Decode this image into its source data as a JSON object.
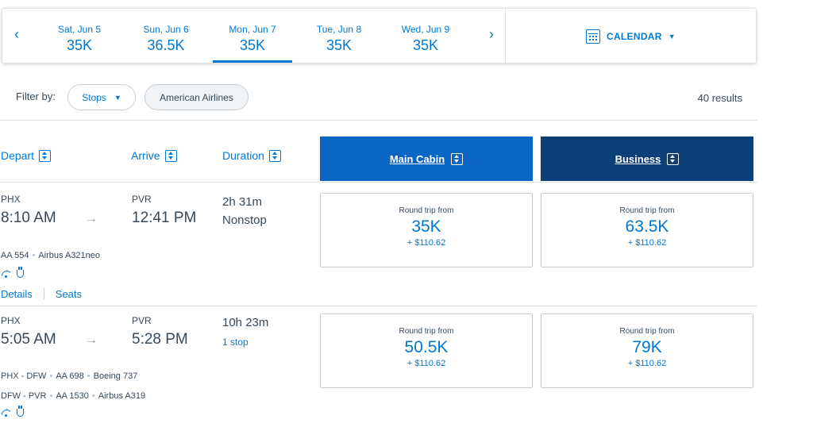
{
  "date_bar": {
    "prev_arrow": "‹",
    "next_arrow": "›",
    "days": [
      {
        "date": "Sat, Jun 5",
        "price": "35K"
      },
      {
        "date": "Sun, Jun 6",
        "price": "36.5K"
      },
      {
        "date": "Mon, Jun 7",
        "price": "35K"
      },
      {
        "date": "Tue, Jun 8",
        "price": "35K"
      },
      {
        "date": "Wed, Jun 9",
        "price": "35K"
      }
    ],
    "selected_index": 2,
    "calendar_label": "CALENDAR",
    "calendar_caret": "▼"
  },
  "filters": {
    "label": "Filter by:",
    "stops_label": "Stops",
    "stops_caret": "▼",
    "airline_label": "American Airlines",
    "results": "40 results"
  },
  "columns": {
    "depart": "Depart",
    "arrive": "Arrive",
    "duration": "Duration",
    "main_cabin": "Main Cabin",
    "business": "Business"
  },
  "flights": [
    {
      "depart_code": "PHX",
      "depart_time": "8:10 AM",
      "arrive_code": "PVR",
      "arrive_time": "12:41 PM",
      "arrow": "→",
      "duration": "2h 31m",
      "stops": "Nonstop",
      "segments": [
        {
          "route": "",
          "flight": "AA 554",
          "aircraft": "Airbus A321neo"
        }
      ],
      "details_label": "Details",
      "seats_label": "Seats",
      "main_cabin": {
        "label": "Round trip from",
        "points": "35K",
        "taxes": "+ $110.62"
      },
      "business": {
        "label": "Round trip from",
        "points": "63.5K",
        "taxes": "+ $110.62"
      }
    },
    {
      "depart_code": "PHX",
      "depart_time": "5:05 AM",
      "arrive_code": "PVR",
      "arrive_time": "5:28 PM",
      "arrow": "→",
      "duration": "10h 23m",
      "stops": "1 stop",
      "segments": [
        {
          "route": "PHX - DFW",
          "flight": "AA 698",
          "aircraft": "Boeing 737"
        },
        {
          "route": "DFW - PVR",
          "flight": "AA 1530",
          "aircraft": "Airbus A319"
        }
      ],
      "main_cabin": {
        "label": "Round trip from",
        "points": "50.5K",
        "taxes": "+ $110.62"
      },
      "business": {
        "label": "Round trip from",
        "points": "79K",
        "taxes": "+ $110.62"
      }
    }
  ],
  "separator_dot": "•",
  "icons": {
    "wifi": "wifi-icon",
    "power": "power-icon",
    "calendar": "calendar-icon",
    "sort": "sort-icon"
  },
  "colors": {
    "accent": "#0078d2",
    "main_cabin_header": "#0a66c2",
    "business_header": "#0b3f7a",
    "text": "#36495a"
  }
}
